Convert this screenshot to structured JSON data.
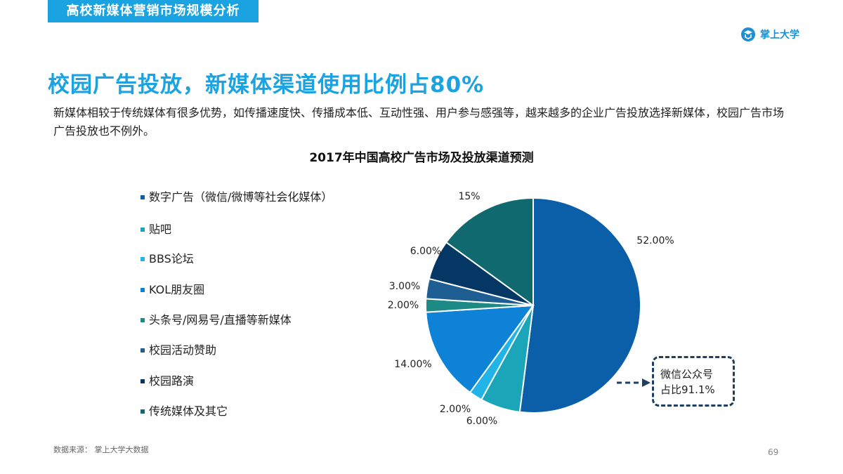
{
  "section": {
    "title": "高校新媒体营销市场规模分析"
  },
  "brand": {
    "name": "掌上大学"
  },
  "headline": "校园广告投放，新媒体渠道使用比例占80%",
  "intro": "新媒体相较于传统媒体有很多优势，如传播速度快、传播成本低、互动性强、用户参与感强等，越来越多的企业广告投放选择新媒体，校园广告市场广告投放也不例外。",
  "chart_data": {
    "type": "pie",
    "title": "2017年中国高校广告市场及投放渠道预测",
    "legend_position": "left",
    "slices": [
      {
        "name": "数字广告（微信/微博等社会化媒体）",
        "value": 52,
        "label": "52.00%",
        "color": "#0a5fa8"
      },
      {
        "name": "贴吧",
        "value": 6,
        "label": "6.00%",
        "color": "#1ba5b8"
      },
      {
        "name": "BBS论坛",
        "value": 2,
        "label": "2.00%",
        "color": "#22b4e8"
      },
      {
        "name": "KOL朋友圈",
        "value": 14,
        "label": "14.00%",
        "color": "#0d82d6"
      },
      {
        "name": "头条号/网易号/直播等新媒体",
        "value": 2,
        "label": "2.00%",
        "color": "#1e8a85"
      },
      {
        "name": "校园活动赞助",
        "value": 3,
        "label": "3.00%",
        "color": "#1e5e93"
      },
      {
        "name": "校园路演",
        "value": 6,
        "label": "6.00%",
        "color": "#053765"
      },
      {
        "name": "传统媒体及其它",
        "value": 15,
        "label": "15%",
        "color": "#10696e"
      }
    ]
  },
  "callout": {
    "line1": "微信公众号",
    "line2": "占比91.1%"
  },
  "footer": {
    "source": "数据来源： 掌上大学大数据",
    "page": "69"
  }
}
